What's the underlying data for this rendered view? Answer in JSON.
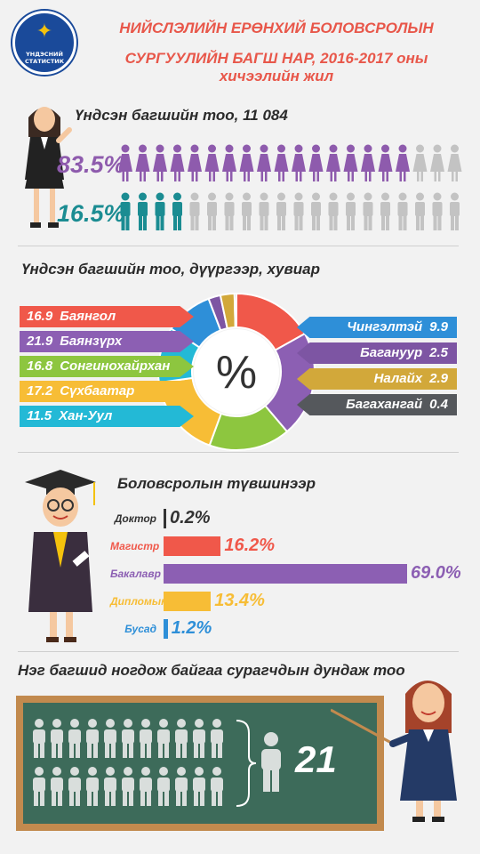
{
  "logo": {
    "text_line1": "ҮНДЭСНИЙ",
    "text_line2": "СТАТИСТИК"
  },
  "title": {
    "line1": "НИЙСЛЭЛИЙН ЕРӨНХИЙ БОЛОВСРОЛЫН",
    "line2": "СУРГУУЛИЙН БАГШ НАР, 2016-2017 оны хичээлийн жил"
  },
  "colors": {
    "female": "#8e5bad",
    "male": "#1b8c92",
    "grey": "#c3c3c3",
    "title": "#e8574a"
  },
  "section1": {
    "title": "Үндсэн багшийн тоо, 11 084",
    "female_pct_label": "83.5%",
    "male_pct_label": "16.5%",
    "female_pct": 83.5,
    "male_pct": 16.5
  },
  "section2": {
    "title": "Үндсэн багшийн тоо, дүүргээр, хувиар",
    "center_symbol": "%"
  },
  "section3": {
    "title": "Боловсролын түвшинээр"
  },
  "section4": {
    "title": "Нэг багшид ногдож байгаа сурагчдын дундаж тоо",
    "value": "21"
  },
  "chart_data": [
    {
      "type": "pie",
      "title": "Үндсэн багшийн тоо, дүүргээр, хувиар",
      "categories": [
        "Баянгол",
        "Баянзүрх",
        "Сонгинохайрхан",
        "Сүхбаатар",
        "Хан-Уул",
        "Чингэлтэй",
        "Багануур",
        "Налайх",
        "Багахангай"
      ],
      "values": [
        16.9,
        21.9,
        16.8,
        17.2,
        11.5,
        9.9,
        2.5,
        2.9,
        0.4
      ],
      "value_labels": [
        "16.9",
        "21.9",
        "16.8",
        "17.2",
        "11.5",
        "9.9",
        "2.5",
        "2.9",
        "0.4"
      ],
      "colors": [
        "#f0584a",
        "#8c5fb3",
        "#8dc63f",
        "#f7bd36",
        "#23b9d6",
        "#2e8fd8",
        "#7d55a3",
        "#d2a83a",
        "#55585c"
      ]
    },
    {
      "type": "bar",
      "title": "Боловсролын түвшинээр",
      "categories": [
        "Доктор",
        "Магистр",
        "Бакалавр",
        "Дипломын",
        "Бусад"
      ],
      "values": [
        0.2,
        16.2,
        69.0,
        13.4,
        1.2
      ],
      "value_labels": [
        "0.2%",
        "16.2%",
        "69.0%",
        "13.4%",
        "1.2%"
      ],
      "colors": [
        "#333333",
        "#f0584a",
        "#8c5fb3",
        "#f7bd36",
        "#2e8fd8"
      ]
    }
  ]
}
